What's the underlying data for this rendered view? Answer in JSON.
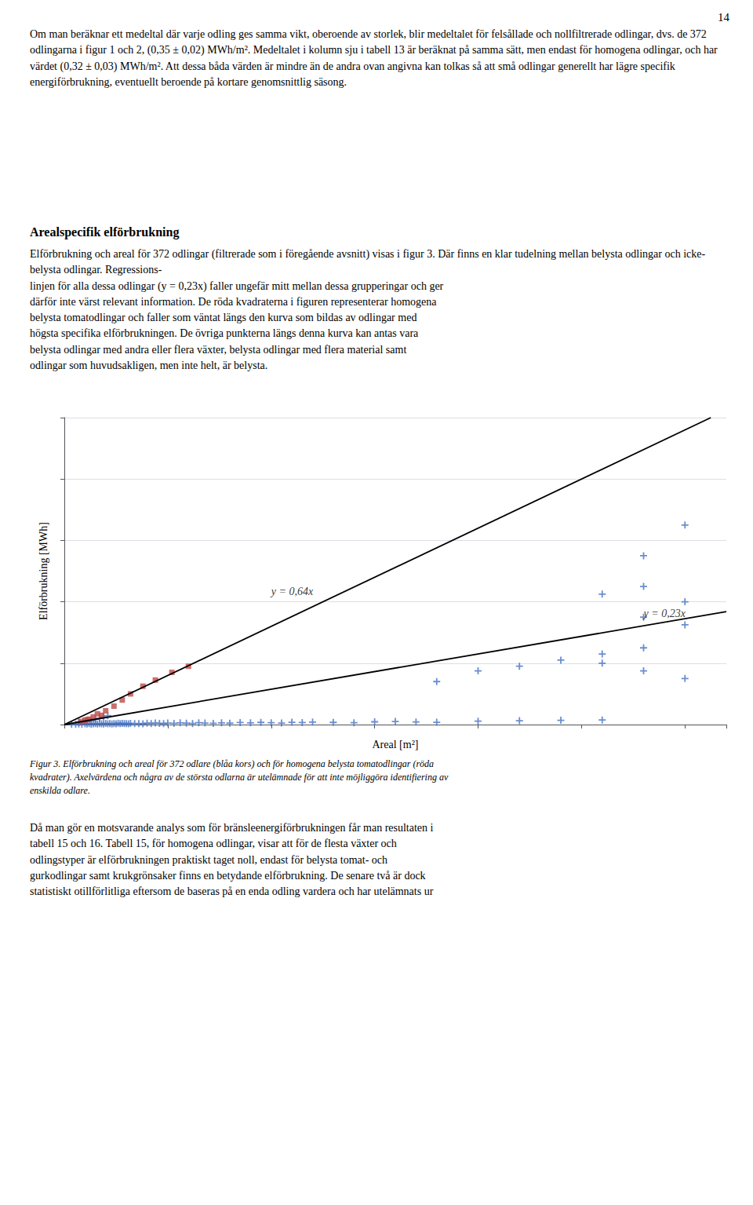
{
  "page": {
    "page_number": "14",
    "top_paragraph": "Om man beräknar ett medeltal där varje odling ges samma vikt, oberoende av storlek, blir medeltalet för felsållade och nollfiltrerade odlingar, dvs. de 372 odlingarna i figur 1 och 2, (0,35 ± 0,02) MWh/m². Medeltalet i kolumn sju i tabell 13 är beräknat på samma sätt, men endast för homogena odlingar, och har värdet (0,32 ± 0,03) MWh/m². Att dessa båda värden är mindre än de andra ovan angivna kan tolkas så att små odlingar generellt har lägre specifik energiförbrukning, eventuellt beroende på kortare genomsnittlig säsong.",
    "section_title": "Arealspecifik elförbrukning",
    "section_paragraph": "Elförbrukning och areal för 372 odlingar (filtrerade som i föregående avsnitt) visas i figur 3. Där finns en klar tudelning mellan belysta odlingar och icke-belysta odlingar. Regressions-\nlinjen för alla dessa odlingar (y = 0,23x) faller ungefär mitt mellan dessa grupperingar och ger\ndärför inte värst relevant information. De röda kvadraterna i figuren representerar homogena\nbelysta tomatodlingar och faller som väntat längs den kurva som bildas av odlingar med\nhögsta specifika elförbrukningen. De övriga punkterna längs denna kurva kan antas vara\nbelysta odlingar med andra eller flera växter, belysta odlingar med flera material samt\nodlingar som huvudsakligen, men inte helt, är belysta.",
    "caption": "Figur 3. Elförbrukning och areal för 372 odlare (blåa kors) och för homogena belysta tomatodlingar (röda\nkvadrater). Axelvärdena och några av de största odlarna är utelämnade för att inte möjliggöra identifiering av\nenskilda odlare.",
    "bottom_paragraph": "Då man gör en motsvarande analys som för bränsleenergiförbrukningen får man resultaten i\ntabell 15 och 16. Tabell 15, för homogena odlingar, visar att för de flesta växter och\nodlingstyper är elförbrukningen praktiskt taget noll, endast för belysta tomat- och\ngurkodlingar samt krukgrönsaker finns en betydande elförbrukning. De senare två är dock\nstatistiskt otillförlitliga eftersom de baseras på en enda odling vardera och har utelämnats ur"
  },
  "chart_data": {
    "type": "scatter",
    "xlabel": "Areal [m²]",
    "ylabel": "Elförbrukning [MWh]",
    "xlim": [
      0,
      3200
    ],
    "ylim": [
      0,
      2000
    ],
    "xticks": [
      0,
      500,
      1000,
      1500,
      2000,
      2500,
      3000
    ],
    "yticks": [
      0,
      400,
      800,
      1200,
      1600,
      2000
    ],
    "grid": "y",
    "tick_labels": false,
    "annotations": [
      {
        "text": "y = 0,64x",
        "x": 1000,
        "y": 820
      },
      {
        "text": "y = 0,23x",
        "x": 2800,
        "y": 680
      }
    ],
    "series": [
      {
        "type": "scatter",
        "marker": "cross",
        "color": "#4472C4",
        "x": [
          35,
          55,
          70,
          85,
          100,
          110,
          120,
          130,
          140,
          150,
          160,
          170,
          180,
          190,
          200,
          210,
          220,
          230,
          240,
          250,
          260,
          270,
          280,
          290,
          300,
          310,
          320,
          340,
          360,
          380,
          400,
          420,
          440,
          460,
          480,
          500,
          530,
          560,
          590,
          620,
          650,
          680,
          720,
          760,
          800,
          850,
          900,
          950,
          1000,
          1050,
          1100,
          1150,
          1200,
          1300,
          1400,
          1500,
          1600,
          1700,
          1800,
          2000,
          2200,
          2400,
          2600,
          70,
          90,
          110,
          130,
          150,
          170,
          190,
          210,
          2800,
          3000,
          2000,
          1800,
          2400,
          2600,
          2800,
          3000,
          2200,
          2600,
          2800,
          3000,
          2800,
          3000,
          2600,
          2800
        ],
        "values": [
          2,
          3,
          4,
          3,
          5,
          4,
          6,
          3,
          5,
          6,
          4,
          7,
          5,
          4,
          8,
          5,
          6,
          4,
          7,
          5,
          9,
          6,
          8,
          7,
          6,
          5,
          8,
          6,
          7,
          5,
          9,
          7,
          10,
          8,
          6,
          10,
          8,
          11,
          9,
          7,
          12,
          10,
          8,
          11,
          9,
          13,
          11,
          14,
          12,
          10,
          15,
          13,
          16,
          14,
          12,
          18,
          20,
          17,
          15,
          22,
          25,
          28,
          30,
          14,
          18,
          22,
          28,
          35,
          42,
          50,
          58,
          500,
          650,
          350,
          280,
          420,
          460,
          350,
          300,
          380,
          400,
          700,
          800,
          1100,
          1300,
          850,
          900
        ]
      },
      {
        "type": "scatter",
        "marker": "square",
        "color": "#BE4B48",
        "x": [
          120,
          140,
          160,
          180,
          200,
          240,
          280,
          320,
          380,
          440,
          520,
          80,
          100,
          110,
          600
        ],
        "values": [
          35,
          50,
          70,
          60,
          90,
          120,
          160,
          200,
          250,
          290,
          340,
          20,
          28,
          32,
          380
        ]
      },
      {
        "type": "line",
        "line_style": "solid",
        "color": "#000000",
        "x": [
          0,
          3125
        ],
        "values": [
          0,
          2000
        ]
      },
      {
        "type": "line",
        "line_style": "solid",
        "color": "#000000",
        "x": [
          0,
          3200
        ],
        "values": [
          0,
          736
        ]
      }
    ]
  }
}
